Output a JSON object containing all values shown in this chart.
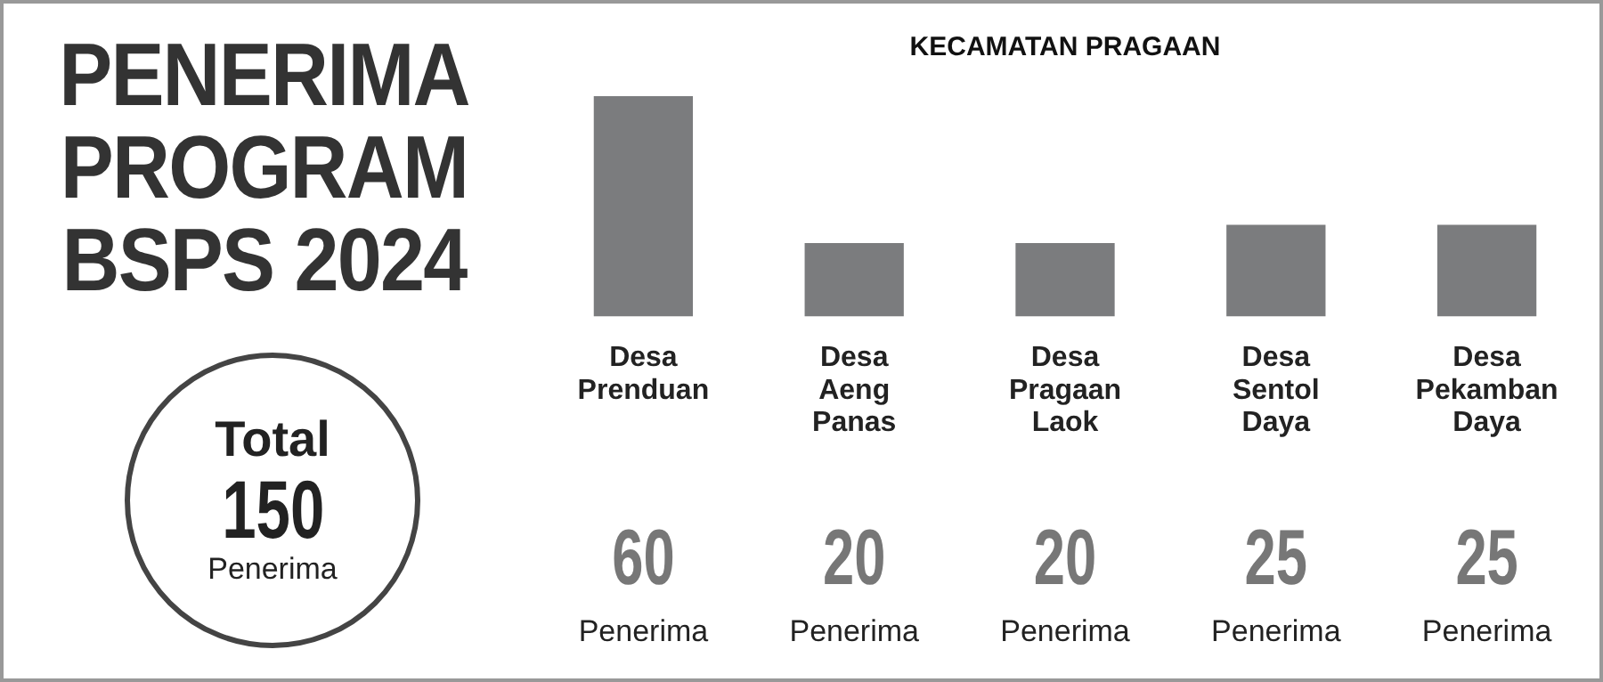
{
  "chart_data": {
    "type": "bar",
    "title": "PENERIMA PROGRAM BSPS 2024",
    "subtitle": "KECAMATAN PRAGAAN",
    "categories": [
      "Desa Prenduan",
      "Desa Aeng Panas",
      "Desa Pragaan Laok",
      "Desa Sentol Daya",
      "Desa Pekamban Daya"
    ],
    "values": [
      60,
      20,
      20,
      25,
      25
    ],
    "value_labels": [
      "60\nPenerima",
      "20\nPenerima",
      "20\nPenerima",
      "25\nPenerima",
      "25\nPenerima"
    ],
    "color": "#7b7c7e",
    "annotations": [
      "Total",
      "150",
      "Penerima"
    ],
    "grid": false,
    "legend": false
  }
}
